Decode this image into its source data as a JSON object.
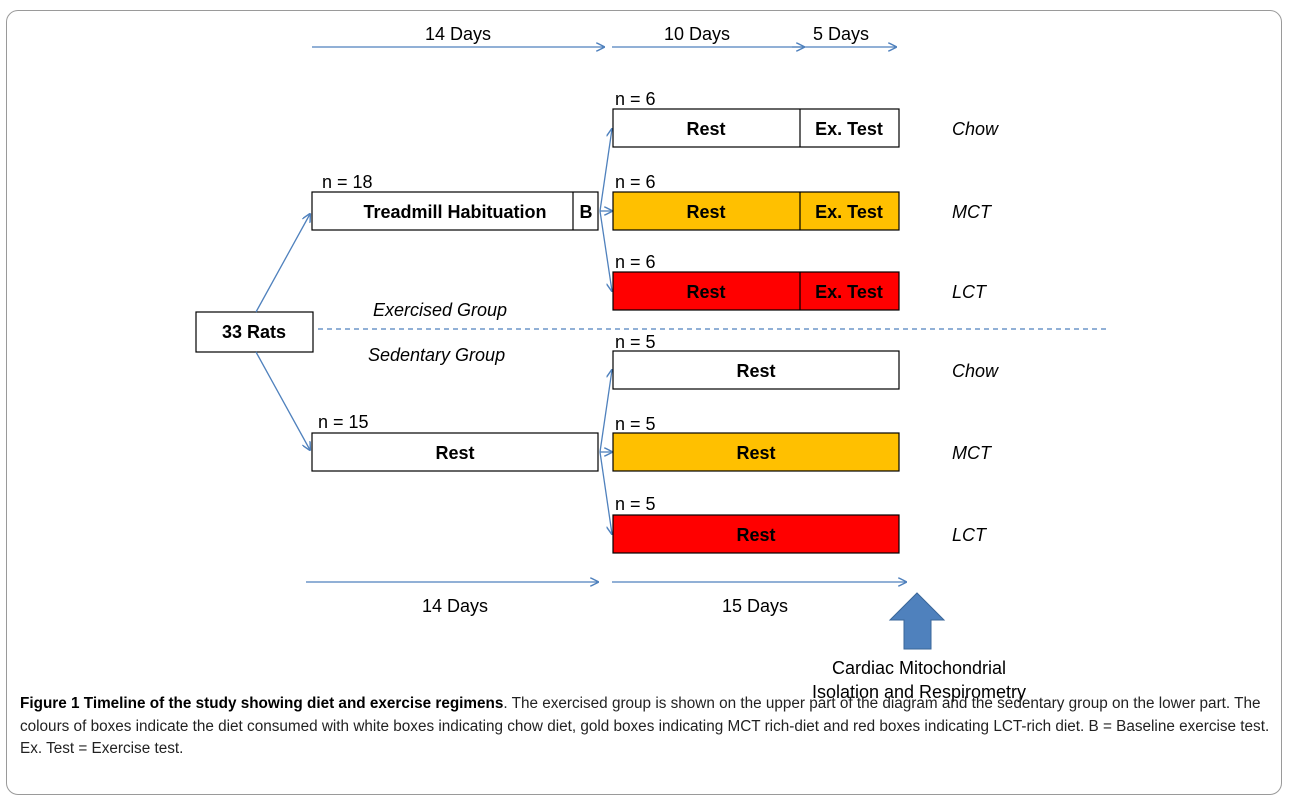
{
  "timeline_top": {
    "phase1": "14 Days",
    "phase2": "10 Days",
    "phase3": "5 Days"
  },
  "timeline_bottom": {
    "phase1": "14 Days",
    "phase2": "15 Days"
  },
  "start": {
    "label": "33 Rats"
  },
  "exercised": {
    "group_label": "Exercised Group",
    "n": "n = 18",
    "habituation": "Treadmill Habituation",
    "baseline": "B",
    "arms": [
      {
        "n": "n = 6",
        "rest": "Rest",
        "test": "Ex. Test",
        "diet": "Chow",
        "color": "#ffffff"
      },
      {
        "n": "n = 6",
        "rest": "Rest",
        "test": "Ex. Test",
        "diet": "MCT",
        "color": "#ffc000"
      },
      {
        "n": "n = 6",
        "rest": "Rest",
        "test": "Ex. Test",
        "diet": "LCT",
        "color": "#ff0000"
      }
    ]
  },
  "sedentary": {
    "group_label": "Sedentary Group",
    "n": "n = 15",
    "rest": "Rest",
    "arms": [
      {
        "n": "n = 5",
        "rest": "Rest",
        "diet": "Chow",
        "color": "#ffffff"
      },
      {
        "n": "n = 5",
        "rest": "Rest",
        "diet": "MCT",
        "color": "#ffc000"
      },
      {
        "n": "n = 5",
        "rest": "Rest",
        "diet": "LCT",
        "color": "#ff0000"
      }
    ]
  },
  "endpoint": {
    "line1": "Cardiac Mitochondrial",
    "line2": "Isolation and Respirometry"
  },
  "colors": {
    "arrow": "#4f81bd",
    "divider": "#4f81bd",
    "endpoint_arrow": "#4f81bd"
  },
  "caption": {
    "title": "Figure 1 Timeline of the study showing diet and exercise regimens",
    "body": ". The exercised group is shown on the upper part of the diagram and the sedentary group on the lower part. The colours of boxes indicate the diet consumed with white boxes indicating chow diet, gold boxes indicating MCT rich-diet and red boxes indicating LCT-rich diet. B = Baseline exercise test. Ex. Test = Exercise test."
  }
}
